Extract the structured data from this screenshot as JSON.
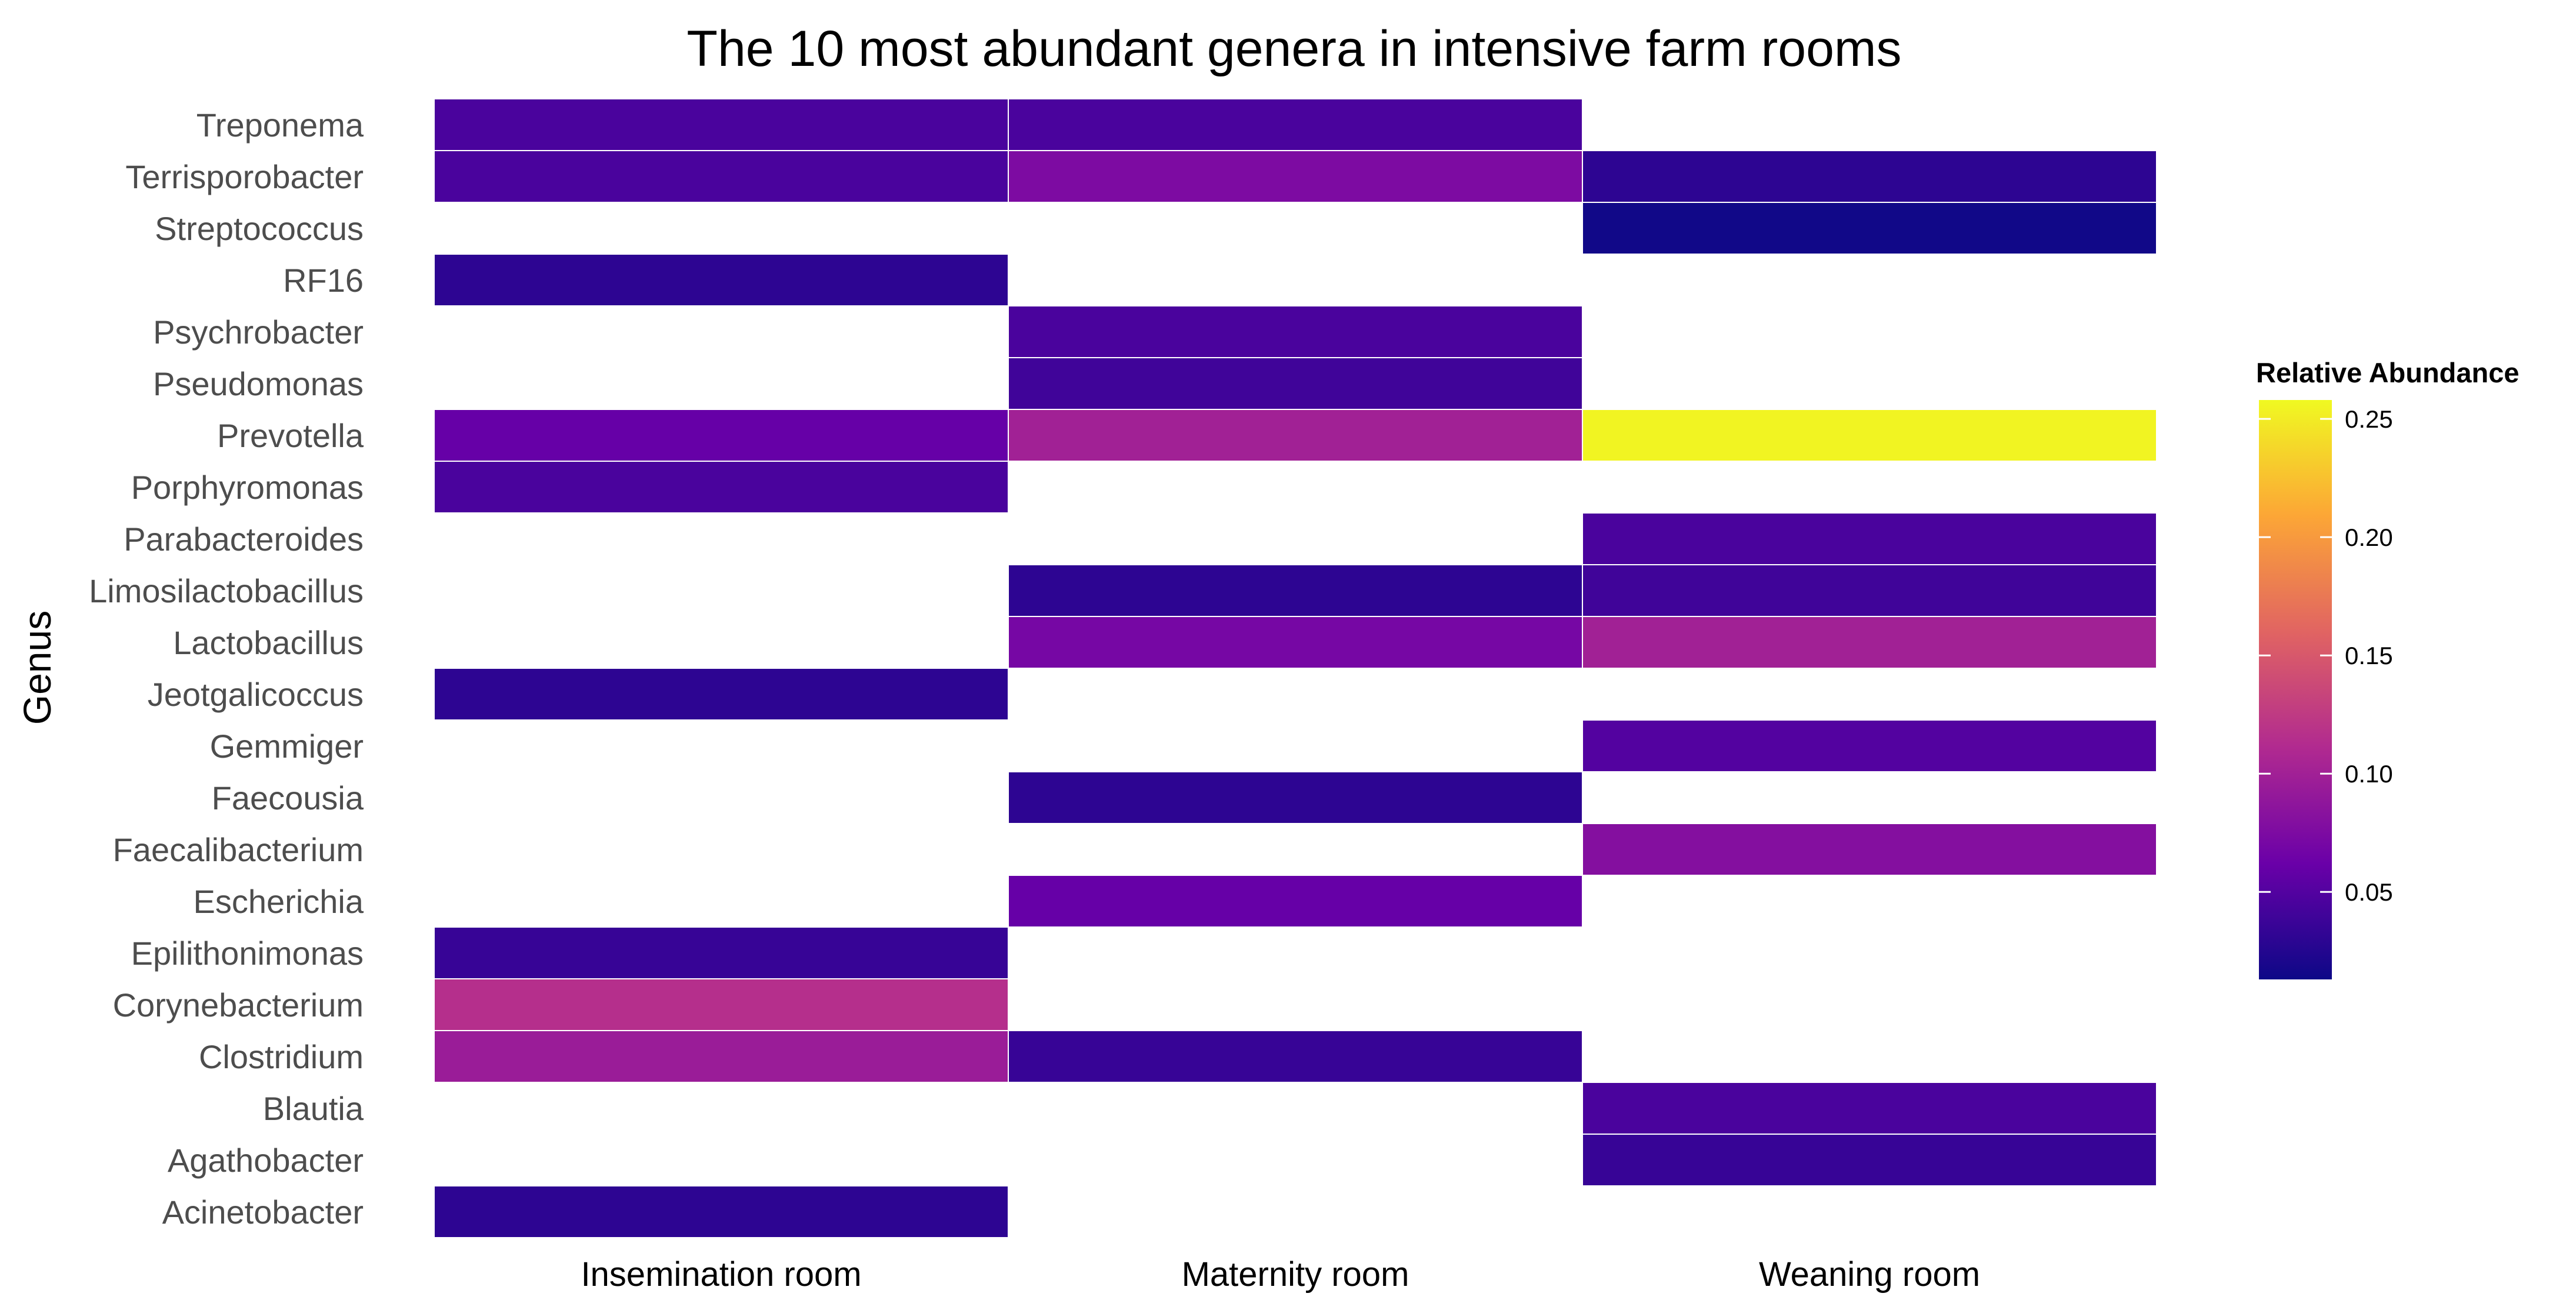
{
  "chart_data": {
    "type": "heatmap",
    "title": "The 10 most abundant genera in intensive farm rooms",
    "xlabel": "",
    "ylabel": "Genus",
    "x_categories": [
      "Insemination room",
      "Maternity room",
      "Weaning room"
    ],
    "y_categories": [
      "Treponema",
      "Terrisporobacter",
      "Streptococcus",
      "RF16",
      "Psychrobacter",
      "Pseudomonas",
      "Prevotella",
      "Porphyromonas",
      "Parabacteroides",
      "Limosilactobacillus",
      "Lactobacillus",
      "Jeotgalicoccus",
      "Gemmiger",
      "Faecousia",
      "Faecalibacterium",
      "Escherichia",
      "Epilithonimonas",
      "Corynebacterium",
      "Clostridium",
      "Blautia",
      "Agathobacter",
      "Acinetobacter"
    ],
    "cells": [
      {
        "x": "Insemination room",
        "y": "Treponema",
        "value": 0.045
      },
      {
        "x": "Maternity room",
        "y": "Treponema",
        "value": 0.045
      },
      {
        "x": "Insemination room",
        "y": "Terrisporobacter",
        "value": 0.045
      },
      {
        "x": "Maternity room",
        "y": "Terrisporobacter",
        "value": 0.075
      },
      {
        "x": "Weaning room",
        "y": "Terrisporobacter",
        "value": 0.03
      },
      {
        "x": "Weaning room",
        "y": "Streptococcus",
        "value": 0.015
      },
      {
        "x": "Insemination room",
        "y": "RF16",
        "value": 0.03
      },
      {
        "x": "Maternity room",
        "y": "Psychrobacter",
        "value": 0.045
      },
      {
        "x": "Maternity room",
        "y": "Pseudomonas",
        "value": 0.04
      },
      {
        "x": "Insemination room",
        "y": "Prevotella",
        "value": 0.06
      },
      {
        "x": "Maternity room",
        "y": "Prevotella",
        "value": 0.1
      },
      {
        "x": "Weaning room",
        "y": "Prevotella",
        "value": 0.255
      },
      {
        "x": "Insemination room",
        "y": "Porphyromonas",
        "value": 0.045
      },
      {
        "x": "Weaning room",
        "y": "Parabacteroides",
        "value": 0.045
      },
      {
        "x": "Maternity room",
        "y": "Limosilactobacillus",
        "value": 0.03
      },
      {
        "x": "Weaning room",
        "y": "Limosilactobacillus",
        "value": 0.04
      },
      {
        "x": "Maternity room",
        "y": "Lactobacillus",
        "value": 0.07
      },
      {
        "x": "Weaning room",
        "y": "Lactobacillus",
        "value": 0.1
      },
      {
        "x": "Insemination room",
        "y": "Jeotgalicoccus",
        "value": 0.03
      },
      {
        "x": "Weaning room",
        "y": "Gemmiger",
        "value": 0.05
      },
      {
        "x": "Maternity room",
        "y": "Faecousia",
        "value": 0.03
      },
      {
        "x": "Weaning room",
        "y": "Faecalibacterium",
        "value": 0.08
      },
      {
        "x": "Maternity room",
        "y": "Escherichia",
        "value": 0.06
      },
      {
        "x": "Insemination room",
        "y": "Epilithonimonas",
        "value": 0.035
      },
      {
        "x": "Insemination room",
        "y": "Corynebacterium",
        "value": 0.115
      },
      {
        "x": "Insemination room",
        "y": "Clostridium",
        "value": 0.095
      },
      {
        "x": "Maternity room",
        "y": "Clostridium",
        "value": 0.035
      },
      {
        "x": "Weaning room",
        "y": "Blautia",
        "value": 0.045
      },
      {
        "x": "Weaning room",
        "y": "Agathobacter",
        "value": 0.035
      },
      {
        "x": "Insemination room",
        "y": "Acinetobacter",
        "value": 0.03
      }
    ],
    "legend": {
      "title": "Relative Abundance",
      "min": 0.013,
      "max": 0.258,
      "ticks": [
        0.05,
        0.1,
        0.15,
        0.2,
        0.25
      ],
      "tick_labels": [
        "0.05",
        "0.10",
        "0.15",
        "0.20",
        "0.25"
      ],
      "placement": "right"
    },
    "colorscale": [
      "#0d0887",
      "#6a00a8",
      "#b12a90",
      "#e16462",
      "#fca636",
      "#f0f921"
    ],
    "grid": false
  }
}
